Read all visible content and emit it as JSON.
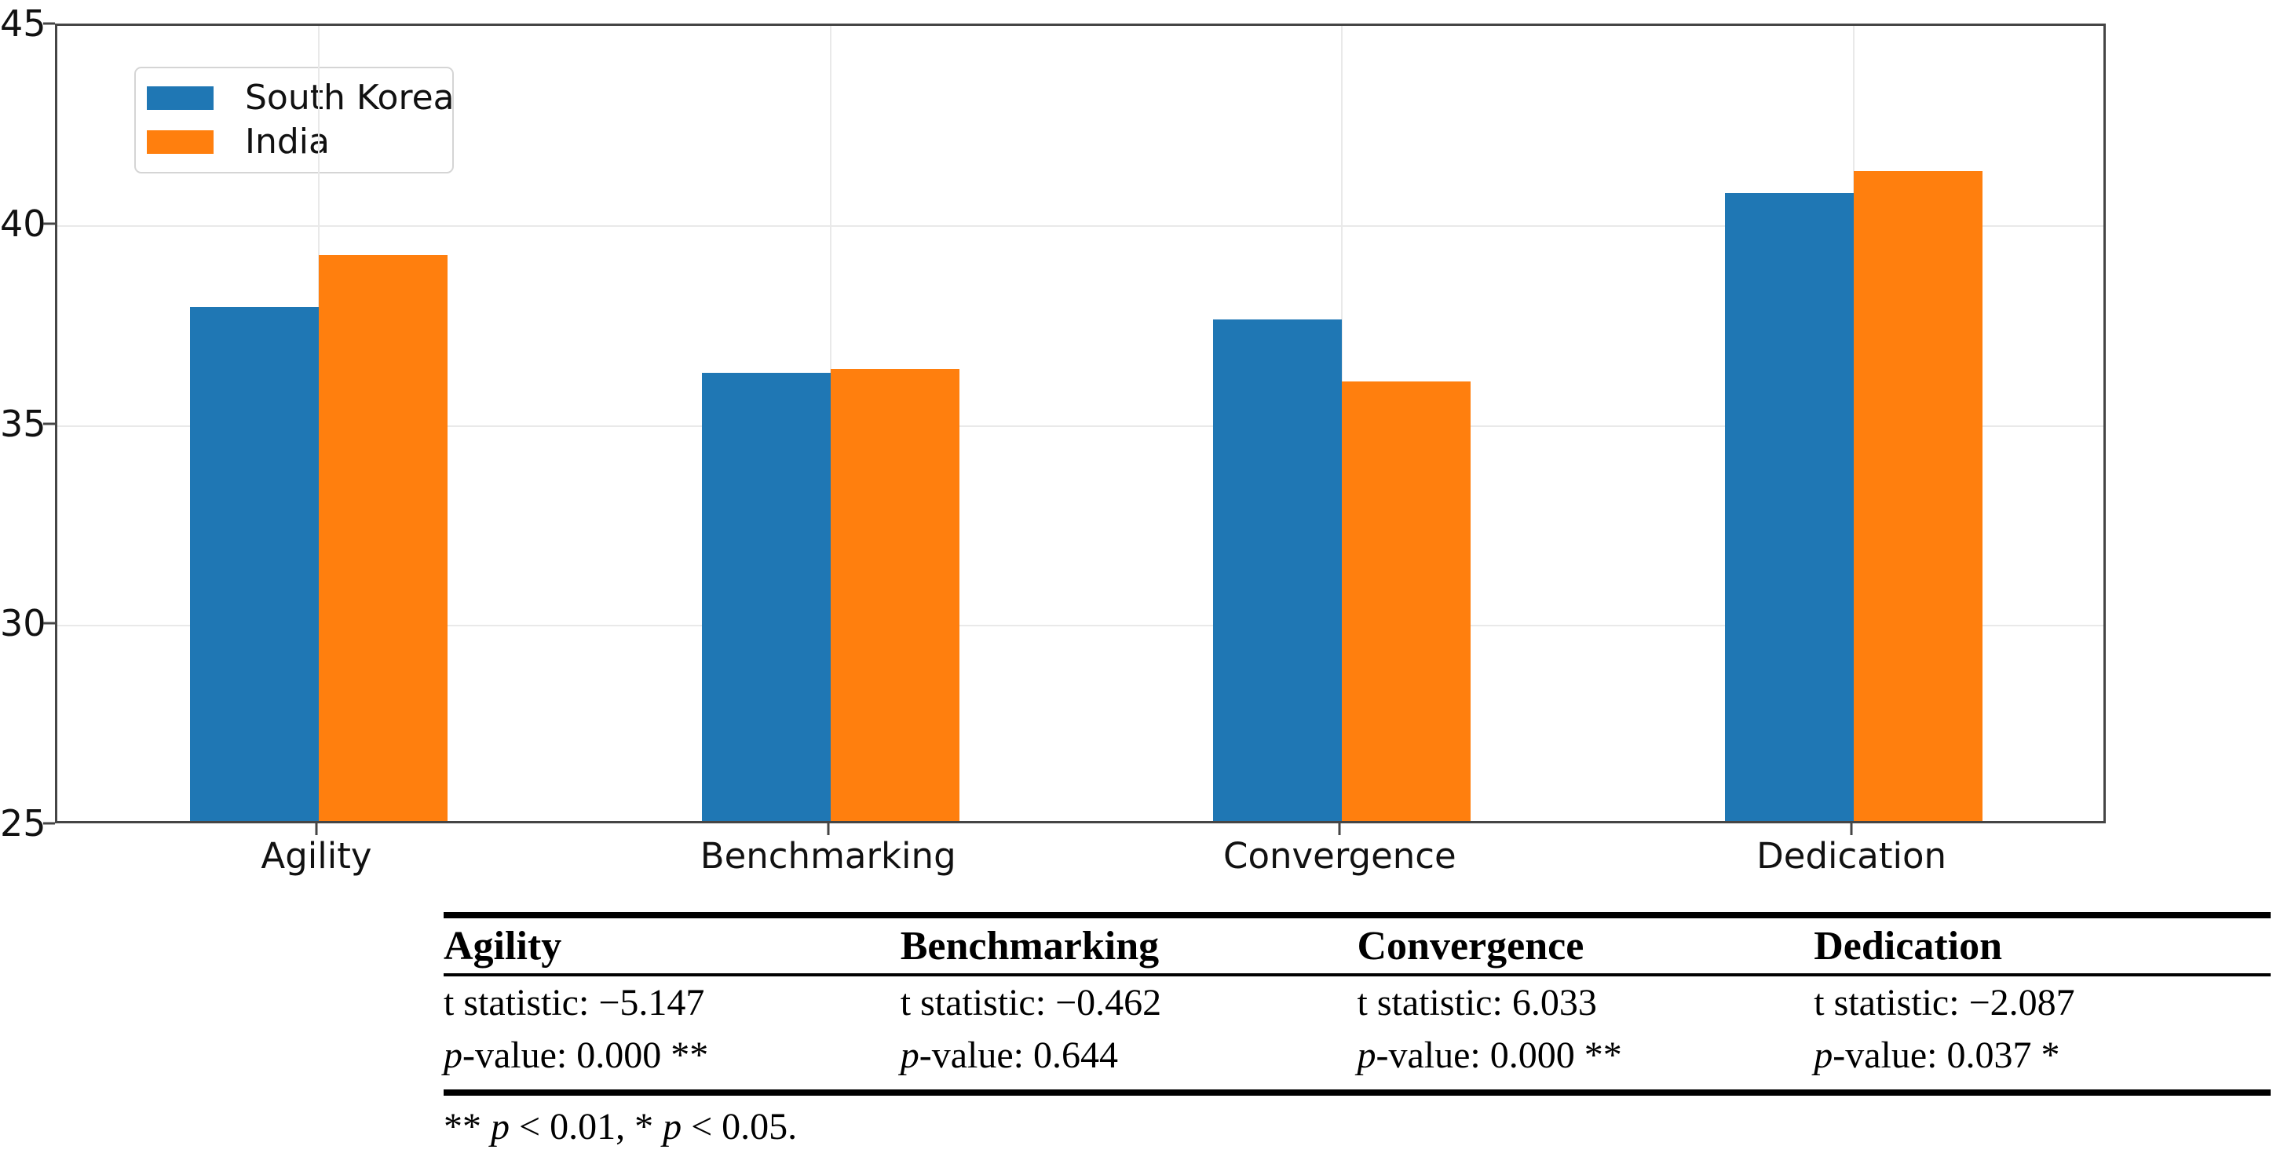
{
  "chart_data": {
    "type": "bar",
    "categories": [
      "Agility",
      "Benchmarking",
      "Convergence",
      "Dedication"
    ],
    "series": [
      {
        "name": "South Korea",
        "color": "#1f77b4",
        "values": [
          37.85,
          36.2,
          37.55,
          40.7
        ]
      },
      {
        "name": "India",
        "color": "#ff7f0e",
        "values": [
          39.15,
          36.3,
          36.0,
          41.25
        ]
      }
    ],
    "title": "",
    "xlabel": "",
    "ylabel": "",
    "ylim": [
      25,
      45
    ],
    "yticks": [
      25,
      30,
      35,
      40,
      45
    ],
    "grid": true,
    "legend_position": "upper left"
  },
  "table": {
    "p_label": "p",
    "columns": [
      {
        "header": "Agility",
        "t_stat": "t statistic: −5.147",
        "p_rest": "-value: 0.000 **"
      },
      {
        "header": "Benchmarking",
        "t_stat": "t statistic: −0.462",
        "p_rest": "-value: 0.644"
      },
      {
        "header": "Convergence",
        "t_stat": "t statistic: 6.033",
        "p_rest": "-value: 0.000 **"
      },
      {
        "header": "Dedication",
        "t_stat": "t statistic: −2.087",
        "p_rest": "-value: 0.037 *"
      }
    ],
    "footnote": {
      "part1": "** ",
      "p1": "p",
      "part2": " < 0.01, * ",
      "p2": "p",
      "part3": " < 0.05."
    }
  }
}
